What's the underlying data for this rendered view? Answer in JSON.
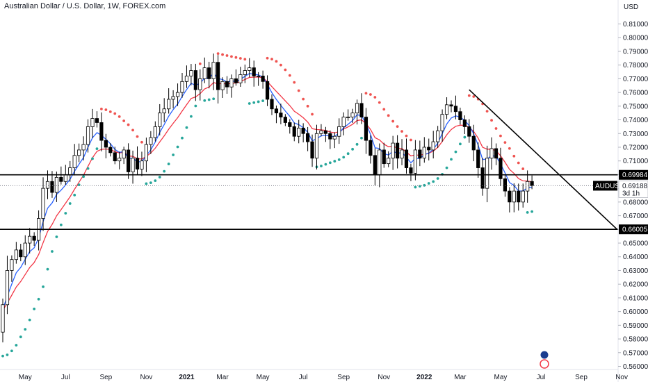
{
  "header": {
    "title": "Australian Dollar / U.S. Dollar, 1W, FOREX.com"
  },
  "axis": {
    "currency": "USD"
  },
  "price_tags": {
    "level_high": "0.69984",
    "level_low": "0.66005",
    "current_symbol": "AUDUSD",
    "current_price": "0.69188",
    "countdown": "3d 1h"
  },
  "colors": {
    "bull": "#ffffff",
    "bear": "#000000",
    "wick": "#000000",
    "ema_fast": "#2962ff",
    "ema_slow": "#f23645",
    "psar_up": "#26a69a",
    "psar_down": "#ef5350",
    "level_line": "#000000",
    "trendline": "#000000"
  },
  "flag_icons": [
    "australia-flag-icon",
    "usa-flag-icon"
  ],
  "chart_data": {
    "type": "candlestick",
    "title": "Australian Dollar / U.S. Dollar, 1W, FOREX.com",
    "y_unit": "USD",
    "ylim": [
      0.555,
      0.823
    ],
    "y_ticks": [
      "0.56000",
      "0.57000",
      "0.58000",
      "0.59000",
      "0.60000",
      "0.61000",
      "0.62000",
      "0.63000",
      "0.64000",
      "0.65000",
      "0.66000",
      "0.67000",
      "0.68000",
      "0.69000",
      "0.70000",
      "0.71000",
      "0.72000",
      "0.73000",
      "0.74000",
      "0.75000",
      "0.76000",
      "0.77000",
      "0.78000",
      "0.79000",
      "0.80000",
      "0.81000"
    ],
    "x_ticks": [
      {
        "label": "May",
        "w": 5,
        "bold": false
      },
      {
        "label": "Jul",
        "w": 14,
        "bold": false
      },
      {
        "label": "Sep",
        "w": 23,
        "bold": false
      },
      {
        "label": "Nov",
        "w": 32,
        "bold": false
      },
      {
        "label": "2021",
        "w": 41,
        "bold": true
      },
      {
        "label": "Mar",
        "w": 49,
        "bold": false
      },
      {
        "label": "May",
        "w": 58,
        "bold": false
      },
      {
        "label": "Jul",
        "w": 67,
        "bold": false
      },
      {
        "label": "Sep",
        "w": 76,
        "bold": false
      },
      {
        "label": "Nov",
        "w": 85,
        "bold": false
      },
      {
        "label": "2022",
        "w": 94,
        "bold": true
      },
      {
        "label": "Mar",
        "w": 102,
        "bold": false
      },
      {
        "label": "May",
        "w": 111,
        "bold": false
      },
      {
        "label": "Jul",
        "w": 120,
        "bold": false
      },
      {
        "label": "Sep",
        "w": 129,
        "bold": false
      },
      {
        "label": "Nov",
        "w": 138,
        "bold": false
      }
    ],
    "horizontal_levels": [
      0.69984,
      0.66005
    ],
    "current_price": 0.69188,
    "trendline": [
      {
        "w": 104,
        "price": 0.762
      },
      {
        "w": 137,
        "price": 0.66
      }
    ],
    "closes": [
      0.605,
      0.63,
      0.638,
      0.645,
      0.64,
      0.65,
      0.655,
      0.652,
      0.668,
      0.69,
      0.695,
      0.687,
      0.698,
      0.695,
      0.7,
      0.705,
      0.714,
      0.718,
      0.722,
      0.735,
      0.741,
      0.738,
      0.725,
      0.72,
      0.716,
      0.71,
      0.712,
      0.718,
      0.702,
      0.712,
      0.704,
      0.71,
      0.722,
      0.727,
      0.735,
      0.745,
      0.748,
      0.755,
      0.757,
      0.76,
      0.768,
      0.772,
      0.776,
      0.762,
      0.77,
      0.778,
      0.77,
      0.782,
      0.762,
      0.768,
      0.764,
      0.77,
      0.767,
      0.773,
      0.776,
      0.778,
      0.772,
      0.772,
      0.768,
      0.755,
      0.748,
      0.745,
      0.742,
      0.738,
      0.735,
      0.728,
      0.734,
      0.73,
      0.724,
      0.712,
      0.73,
      0.732,
      0.73,
      0.726,
      0.728,
      0.735,
      0.742,
      0.742,
      0.745,
      0.752,
      0.742,
      0.725,
      0.714,
      0.7,
      0.718,
      0.708,
      0.712,
      0.723,
      0.712,
      0.718,
      0.705,
      0.701,
      0.718,
      0.712,
      0.72,
      0.718,
      0.724,
      0.732,
      0.744,
      0.751,
      0.75,
      0.746,
      0.74,
      0.735,
      0.728,
      0.718,
      0.705,
      0.69,
      0.712,
      0.719,
      0.712,
      0.697,
      0.688,
      0.68,
      0.688,
      0.68,
      0.688,
      0.695,
      0.692
    ]
  }
}
